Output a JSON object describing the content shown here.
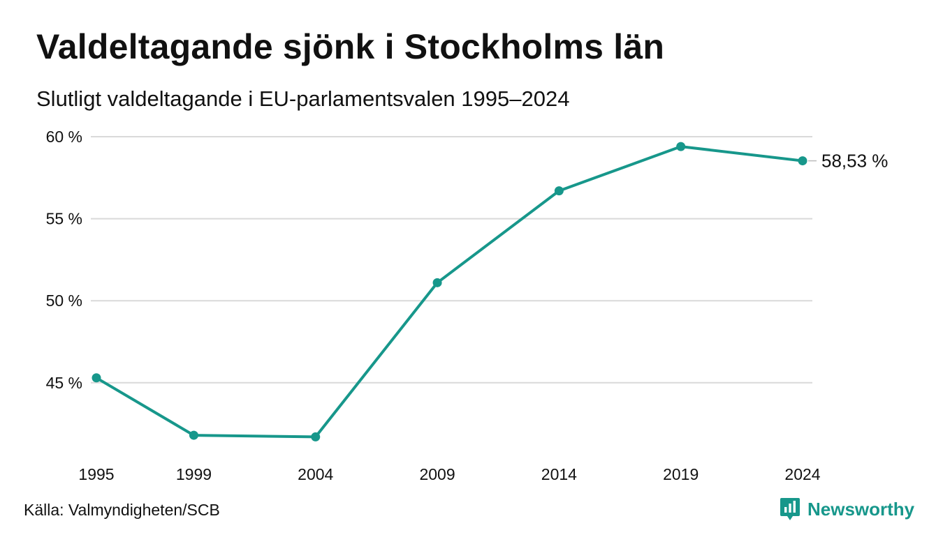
{
  "header": {
    "title": "Valdeltagande sjönk i Stockholms län",
    "subtitle": "Slutligt valdeltagande i EU-parlamentsvalen 1995–2024"
  },
  "footer": {
    "source": "Källa: Valmyndigheten/SCB",
    "brand": "Newsworthy",
    "brand_icon": "newsworthy-logo-icon"
  },
  "colors": {
    "line": "#17978b",
    "grid": "#d9d9d9",
    "text": "#111111"
  },
  "chart_data": {
    "type": "line",
    "title": "Valdeltagande sjönk i Stockholms län",
    "subtitle": "Slutligt valdeltagande i EU-parlamentsvalen 1995–2024",
    "xlabel": "",
    "ylabel": "",
    "x": [
      1995,
      1999,
      2004,
      2009,
      2014,
      2019,
      2024
    ],
    "categories": [
      "1995",
      "1999",
      "2004",
      "2009",
      "2014",
      "2019",
      "2024"
    ],
    "series": [
      {
        "values": [
          45.3,
          41.8,
          41.7,
          51.1,
          56.7,
          59.4,
          58.53
        ]
      }
    ],
    "yticks": [
      45,
      50,
      55,
      60
    ],
    "ytick_labels": [
      "45 %",
      "50 %",
      "55 %",
      "60 %"
    ],
    "ylim": [
      40.4,
      60
    ],
    "grid": true,
    "last_point_label": "58,53 %",
    "source": "Källa: Valmyndigheten/SCB"
  }
}
